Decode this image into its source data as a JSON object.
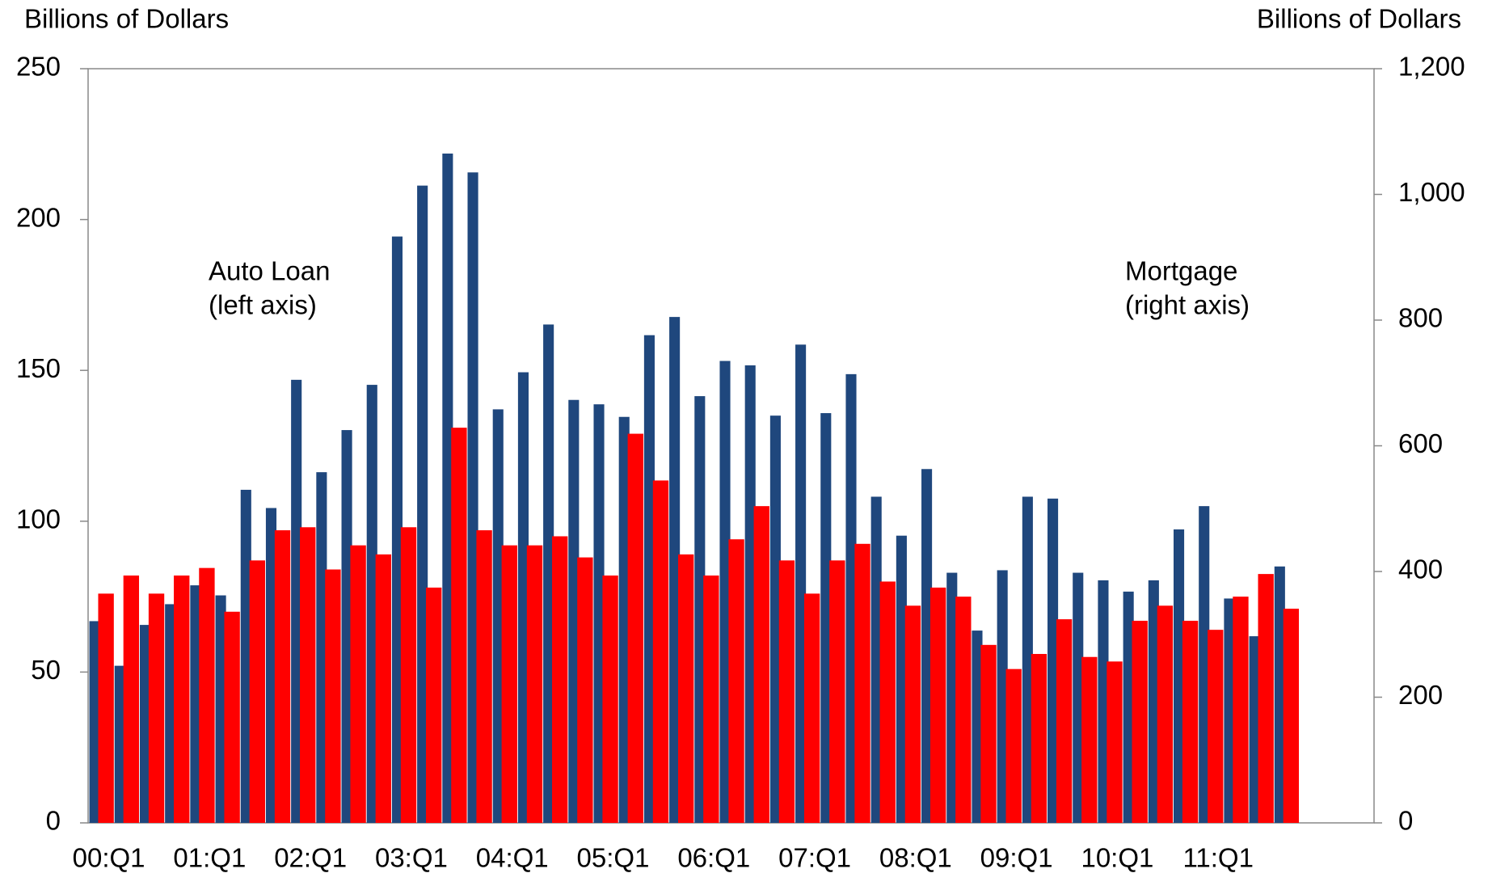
{
  "chart_data": {
    "type": "bar",
    "y_label": "Billions of Dollars",
    "y2_label": "Billions of Dollars",
    "categories": [
      "00:Q1",
      null,
      null,
      null,
      "01:Q1",
      null,
      null,
      null,
      "02:Q1",
      null,
      null,
      null,
      "03:Q1",
      null,
      null,
      null,
      "04:Q1",
      null,
      null,
      null,
      "05:Q1",
      null,
      null,
      null,
      "06:Q1",
      null,
      null,
      null,
      "07:Q1",
      null,
      null,
      null,
      "08:Q1",
      null,
      null,
      null,
      "09:Q1",
      null,
      null,
      null,
      "10:Q1",
      null,
      null,
      null,
      "11:Q1",
      null,
      null,
      null,
      null,
      null,
      null
    ],
    "series": [
      {
        "name": "Mortgage",
        "annotation": "(right axis)",
        "color": "#1f477d",
        "axis": "y2",
        "values": [
          321,
          250,
          315,
          348,
          378,
          362,
          530,
          501,
          705,
          558,
          625,
          697,
          933,
          1014,
          1065,
          1035,
          658,
          717,
          793,
          673,
          666,
          646,
          776,
          805,
          679,
          735,
          728,
          648,
          761,
          652,
          714,
          519,
          457,
          563,
          398,
          306,
          402,
          519,
          516,
          398,
          386,
          368,
          386,
          467,
          504,
          357,
          297,
          408,
          null,
          null,
          null
        ]
      },
      {
        "name": "Auto Loan",
        "annotation": "(left axis)",
        "color": "#ff0000",
        "values": [
          76,
          82,
          76,
          82,
          84.5,
          70,
          87,
          97,
          98,
          84,
          92,
          89,
          98,
          78,
          131,
          97,
          92,
          92,
          95,
          88,
          82,
          129,
          113.5,
          89,
          82,
          94,
          105,
          87,
          76,
          87,
          92.5,
          80,
          72,
          78,
          75,
          59,
          51,
          56,
          67.5,
          55,
          53.5,
          67,
          72,
          67,
          64,
          75,
          82.5,
          71,
          null,
          null,
          null
        ]
      }
    ],
    "ylim": [
      0,
      250
    ],
    "yticks": [
      0,
      50,
      100,
      150,
      200,
      250
    ],
    "y2lim": [
      0,
      1200
    ],
    "y2ticks": [
      0,
      200,
      400,
      600,
      800,
      {
        "value": 1000,
        "label": "1,000"
      },
      {
        "value": 1200,
        "label": "1,200"
      }
    ],
    "grid": false
  }
}
